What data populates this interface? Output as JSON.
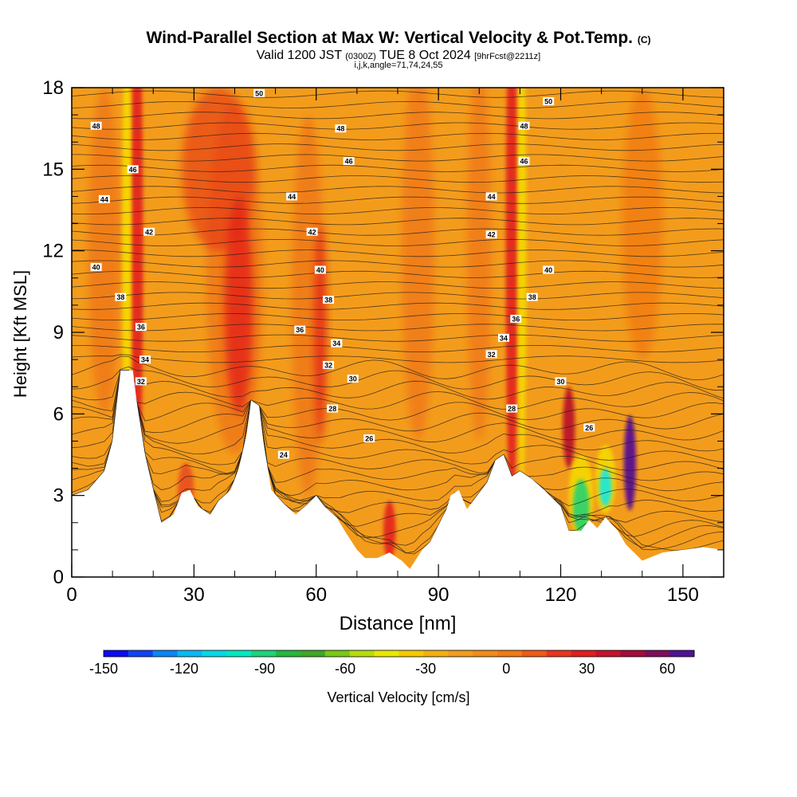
{
  "header": {
    "title": "Wind-Parallel Section at Max W: Vertical Velocity & Pot.Temp.",
    "title_mark": "(C)",
    "valid_prefix": "Valid 1200 JST",
    "valid_zulu": "(0300Z)",
    "valid_date": "TUE 8 Oct 2024",
    "forecast_tag": "[9hrFcst@2211z]",
    "params": "i,j,k,angle=71,74,24,55"
  },
  "colors": {
    "base_orange": "#f39c1c",
    "warm_orange": "#f07a14",
    "updraft_red": "#e4261a",
    "updraft_dark": "#b7102a",
    "updraft_purple": "#5a1190",
    "downdraft_yellow": "#f5d800",
    "downdraft_green": "#2fd36a",
    "downdraft_cyan": "#20e8d8",
    "terrain": "#ffffff"
  },
  "colorbar": {
    "label": "Vertical Velocity [cm/s]",
    "tick_labels": [
      "-150",
      "-120",
      "-90",
      "-60",
      "-30",
      "0",
      "30",
      "60"
    ],
    "tick_values": [
      -150,
      -120,
      -90,
      -60,
      -30,
      0,
      30,
      60
    ],
    "range": [
      -150,
      70
    ],
    "colors": [
      "#0b0bf5",
      "#0d45f5",
      "#0a85f5",
      "#06b9f5",
      "#04d7e8",
      "#00e8c0",
      "#1dd37a",
      "#23b83c",
      "#3ca825",
      "#78c814",
      "#b6dc0c",
      "#e8e800",
      "#f5c800",
      "#f5ad10",
      "#f39c1c",
      "#f28a18",
      "#f07a14",
      "#ee5a14",
      "#e8341c",
      "#e01e1e",
      "#c5122a",
      "#a50c3a",
      "#7e0c5c",
      "#4f1295"
    ]
  },
  "chart_data": {
    "type": "heatmap",
    "xlabel": "Distance [nm]",
    "ylabel": "Height [Kft MSL]",
    "xlim": [
      0,
      160
    ],
    "ylim": [
      0,
      18
    ],
    "x_ticks": [
      0,
      30,
      60,
      90,
      120,
      150
    ],
    "y_ticks": [
      0,
      3,
      6,
      9,
      12,
      15,
      18
    ],
    "x_tick_labels": [
      "0",
      "30",
      "60",
      "90",
      "120",
      "150"
    ],
    "y_tick_labels": [
      "0",
      "3",
      "6",
      "9",
      "12",
      "15",
      "18"
    ],
    "terrain_profile": [
      [
        0,
        3.0
      ],
      [
        4,
        3.2
      ],
      [
        8,
        3.9
      ],
      [
        10,
        5.0
      ],
      [
        12,
        7.6
      ],
      [
        15,
        7.6
      ],
      [
        16,
        6.4
      ],
      [
        18,
        4.5
      ],
      [
        20,
        3.2
      ],
      [
        22,
        2.0
      ],
      [
        25,
        2.3
      ],
      [
        27,
        3.1
      ],
      [
        29,
        3.2
      ],
      [
        31,
        2.6
      ],
      [
        34,
        2.3
      ],
      [
        36,
        2.8
      ],
      [
        39,
        3.2
      ],
      [
        41,
        4.0
      ],
      [
        43,
        5.3
      ],
      [
        44,
        6.5
      ],
      [
        46,
        6.3
      ],
      [
        47,
        5.0
      ],
      [
        49,
        3.2
      ],
      [
        52,
        2.7
      ],
      [
        55,
        2.3
      ],
      [
        58,
        2.7
      ],
      [
        60,
        3.0
      ],
      [
        62,
        2.6
      ],
      [
        65,
        2.2
      ],
      [
        67,
        1.7
      ],
      [
        70,
        1.0
      ],
      [
        72,
        0.7
      ],
      [
        75,
        0.7
      ],
      [
        78,
        0.9
      ],
      [
        81,
        0.6
      ],
      [
        83,
        0.3
      ],
      [
        86,
        1.0
      ],
      [
        88,
        1.3
      ],
      [
        90,
        1.9
      ],
      [
        92,
        2.5
      ],
      [
        93,
        3.0
      ],
      [
        95,
        3.2
      ],
      [
        97,
        2.5
      ],
      [
        99,
        2.9
      ],
      [
        102,
        3.5
      ],
      [
        104,
        4.3
      ],
      [
        106,
        4.5
      ],
      [
        108,
        3.7
      ],
      [
        110,
        3.9
      ],
      [
        113,
        3.6
      ],
      [
        116,
        3.2
      ],
      [
        118,
        2.9
      ],
      [
        120,
        2.6
      ],
      [
        122,
        1.7
      ],
      [
        125,
        1.7
      ],
      [
        127,
        2.1
      ],
      [
        129,
        1.8
      ],
      [
        131,
        2.2
      ],
      [
        134,
        1.7
      ],
      [
        136,
        1.2
      ],
      [
        138,
        0.9
      ],
      [
        140,
        0.6
      ],
      [
        145,
        0.9
      ],
      [
        150,
        1.0
      ],
      [
        155,
        1.1
      ],
      [
        160,
        1.0
      ]
    ],
    "theta_contour_labels": [
      {
        "text": "50",
        "x": 46,
        "y": 17.8
      },
      {
        "text": "50",
        "x": 117,
        "y": 17.5
      },
      {
        "text": "48",
        "x": 6,
        "y": 16.6
      },
      {
        "text": "48",
        "x": 66,
        "y": 16.5
      },
      {
        "text": "48",
        "x": 111,
        "y": 16.6
      },
      {
        "text": "46",
        "x": 15,
        "y": 15.0
      },
      {
        "text": "46",
        "x": 68,
        "y": 15.3
      },
      {
        "text": "46",
        "x": 111,
        "y": 15.3
      },
      {
        "text": "44",
        "x": 8,
        "y": 13.9
      },
      {
        "text": "44",
        "x": 54,
        "y": 14.0
      },
      {
        "text": "44",
        "x": 103,
        "y": 14.0
      },
      {
        "text": "42",
        "x": 19,
        "y": 12.7
      },
      {
        "text": "42",
        "x": 59,
        "y": 12.7
      },
      {
        "text": "42",
        "x": 103,
        "y": 12.6
      },
      {
        "text": "40",
        "x": 6,
        "y": 11.4
      },
      {
        "text": "40",
        "x": 61,
        "y": 11.3
      },
      {
        "text": "40",
        "x": 117,
        "y": 11.3
      },
      {
        "text": "38",
        "x": 12,
        "y": 10.3
      },
      {
        "text": "38",
        "x": 63,
        "y": 10.2
      },
      {
        "text": "38",
        "x": 113,
        "y": 10.3
      },
      {
        "text": "36",
        "x": 17,
        "y": 9.2
      },
      {
        "text": "36",
        "x": 56,
        "y": 9.1
      },
      {
        "text": "36",
        "x": 109,
        "y": 9.5
      },
      {
        "text": "34",
        "x": 18,
        "y": 8.0
      },
      {
        "text": "34",
        "x": 65,
        "y": 8.6
      },
      {
        "text": "34",
        "x": 106,
        "y": 8.8
      },
      {
        "text": "32",
        "x": 17,
        "y": 7.2
      },
      {
        "text": "32",
        "x": 63,
        "y": 7.8
      },
      {
        "text": "32",
        "x": 103,
        "y": 8.2
      },
      {
        "text": "30",
        "x": 69,
        "y": 7.3
      },
      {
        "text": "30",
        "x": 120,
        "y": 7.2
      },
      {
        "text": "28",
        "x": 64,
        "y": 6.2
      },
      {
        "text": "28",
        "x": 108,
        "y": 6.2
      },
      {
        "text": "26",
        "x": 73,
        "y": 5.1
      },
      {
        "text": "26",
        "x": 127,
        "y": 5.5
      },
      {
        "text": "24",
        "x": 52,
        "y": 4.5
      }
    ]
  }
}
